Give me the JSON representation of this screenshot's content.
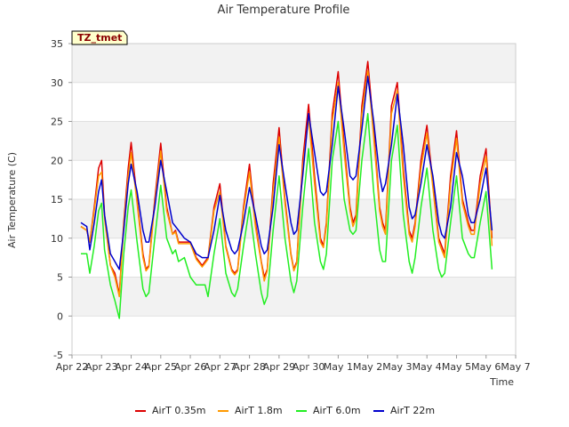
{
  "chart_data": {
    "type": "line",
    "title": "Air Temperature Profile",
    "xlabel": "Time",
    "ylabel": "Air Temperature (C)",
    "badge": "TZ_tmet",
    "ylim": [
      -5,
      35
    ],
    "yticks": [
      -5,
      0,
      5,
      10,
      15,
      20,
      25,
      30,
      35
    ],
    "xlim": [
      0,
      15
    ],
    "xtick_labels": [
      "Apr 22",
      "Apr 23",
      "Apr 24",
      "Apr 25",
      "Apr 26",
      "Apr 27",
      "Apr 28",
      "Apr 29",
      "Apr 30",
      "May 1",
      "May 2",
      "May 3",
      "May 4",
      "May 5",
      "May 6",
      "May 7"
    ],
    "grid": true,
    "legend_position": "bottom",
    "x_unit_note": "x values are days since Apr 22 00:00",
    "series": [
      {
        "name": "AirT 0.35m",
        "color": "#dd0000",
        "x": [
          0.3,
          0.5,
          0.6,
          0.75,
          0.9,
          1.0,
          1.1,
          1.3,
          1.45,
          1.6,
          1.75,
          1.9,
          2.0,
          2.2,
          2.4,
          2.5,
          2.6,
          2.8,
          3.0,
          3.2,
          3.4,
          3.5,
          3.6,
          3.8,
          4.0,
          4.2,
          4.4,
          4.5,
          4.6,
          4.8,
          5.0,
          5.2,
          5.4,
          5.5,
          5.6,
          5.8,
          6.0,
          6.2,
          6.4,
          6.5,
          6.6,
          6.8,
          7.0,
          7.2,
          7.4,
          7.5,
          7.6,
          7.8,
          8.0,
          8.2,
          8.4,
          8.5,
          8.6,
          8.8,
          9.0,
          9.2,
          9.4,
          9.5,
          9.6,
          9.8,
          10.0,
          10.2,
          10.4,
          10.5,
          10.6,
          10.8,
          11.0,
          11.2,
          11.4,
          11.5,
          11.6,
          11.8,
          12.0,
          12.2,
          12.4,
          12.5,
          12.6,
          12.8,
          13.0,
          13.2,
          13.4,
          13.5,
          13.6,
          13.8,
          14.0,
          14.2
        ],
        "y": [
          11.5,
          11.0,
          9.5,
          14.0,
          19.0,
          20.0,
          13.0,
          6.5,
          5.5,
          2.8,
          12.0,
          19.0,
          22.3,
          15.0,
          8.0,
          6.0,
          6.5,
          15.0,
          22.2,
          14.0,
          10.5,
          11.0,
          9.5,
          9.5,
          9.5,
          7.5,
          6.5,
          7.0,
          7.5,
          14.0,
          17.0,
          9.0,
          6.0,
          5.5,
          6.0,
          14.0,
          19.5,
          12.0,
          7.0,
          5.0,
          6.0,
          17.0,
          24.2,
          15.0,
          8.0,
          6.0,
          7.0,
          20.0,
          27.2,
          18.0,
          10.0,
          9.0,
          12.0,
          26.0,
          31.4,
          22.0,
          14.0,
          12.0,
          13.0,
          27.0,
          32.7,
          24.0,
          14.0,
          12.0,
          11.0,
          27.0,
          30.0,
          19.0,
          11.0,
          10.0,
          12.0,
          20.0,
          24.5,
          17.0,
          10.0,
          9.0,
          8.0,
          18.0,
          23.8,
          15.0,
          12.0,
          11.0,
          11.0,
          18.0,
          21.5,
          10.0
        ]
      },
      {
        "name": "AirT 1.8m",
        "color": "#ff9900",
        "x": [
          0.3,
          0.5,
          0.6,
          0.75,
          0.9,
          1.0,
          1.1,
          1.3,
          1.45,
          1.6,
          1.75,
          1.9,
          2.0,
          2.2,
          2.4,
          2.5,
          2.6,
          2.8,
          3.0,
          3.2,
          3.4,
          3.5,
          3.6,
          3.8,
          4.0,
          4.2,
          4.4,
          4.5,
          4.6,
          4.8,
          5.0,
          5.2,
          5.4,
          5.5,
          5.6,
          5.8,
          6.0,
          6.2,
          6.4,
          6.5,
          6.6,
          6.8,
          7.0,
          7.2,
          7.4,
          7.5,
          7.6,
          7.8,
          8.0,
          8.2,
          8.4,
          8.5,
          8.6,
          8.8,
          9.0,
          9.2,
          9.4,
          9.5,
          9.6,
          9.8,
          10.0,
          10.2,
          10.4,
          10.5,
          10.6,
          10.8,
          11.0,
          11.2,
          11.4,
          11.5,
          11.6,
          11.8,
          12.0,
          12.2,
          12.4,
          12.5,
          12.6,
          12.8,
          13.0,
          13.2,
          13.4,
          13.5,
          13.6,
          13.8,
          14.0,
          14.2
        ],
        "y": [
          11.5,
          11.0,
          9.5,
          13.5,
          18.0,
          18.5,
          12.5,
          6.5,
          5.0,
          2.5,
          11.5,
          18.0,
          21.0,
          14.5,
          7.5,
          5.8,
          6.3,
          14.5,
          21.2,
          13.5,
          10.5,
          10.8,
          9.3,
          9.3,
          9.3,
          7.3,
          6.3,
          6.8,
          7.3,
          13.5,
          16.0,
          8.8,
          5.8,
          5.3,
          5.8,
          13.5,
          18.5,
          11.5,
          6.8,
          4.5,
          5.8,
          16.0,
          23.0,
          14.5,
          7.8,
          5.8,
          6.8,
          19.0,
          25.5,
          17.0,
          9.5,
          8.8,
          11.5,
          25.0,
          30.0,
          21.0,
          13.5,
          11.5,
          12.5,
          26.0,
          31.5,
          23.0,
          13.5,
          11.5,
          10.5,
          26.0,
          29.0,
          18.0,
          10.5,
          9.5,
          11.5,
          19.0,
          23.5,
          16.5,
          9.5,
          8.5,
          7.5,
          17.0,
          22.8,
          14.5,
          11.5,
          10.5,
          10.5,
          17.0,
          20.5,
          9.0
        ]
      },
      {
        "name": "AirT 6.0m",
        "color": "#22ee22",
        "x": [
          0.3,
          0.5,
          0.6,
          0.75,
          0.9,
          1.0,
          1.1,
          1.3,
          1.45,
          1.6,
          1.75,
          1.9,
          2.0,
          2.2,
          2.4,
          2.5,
          2.6,
          2.8,
          3.0,
          3.2,
          3.4,
          3.5,
          3.6,
          3.8,
          4.0,
          4.2,
          4.4,
          4.5,
          4.6,
          4.8,
          5.0,
          5.2,
          5.4,
          5.5,
          5.6,
          5.8,
          6.0,
          6.2,
          6.4,
          6.5,
          6.6,
          6.8,
          7.0,
          7.2,
          7.4,
          7.5,
          7.6,
          7.8,
          8.0,
          8.2,
          8.4,
          8.5,
          8.6,
          8.8,
          9.0,
          9.2,
          9.4,
          9.5,
          9.6,
          9.8,
          10.0,
          10.2,
          10.4,
          10.5,
          10.6,
          10.8,
          11.0,
          11.2,
          11.4,
          11.5,
          11.6,
          11.8,
          12.0,
          12.2,
          12.4,
          12.5,
          12.6,
          12.8,
          13.0,
          13.2,
          13.4,
          13.5,
          13.6,
          13.8,
          14.0,
          14.2
        ],
        "y": [
          8.0,
          8.0,
          5.5,
          9.0,
          13.5,
          14.5,
          8.5,
          4.0,
          2.0,
          -0.3,
          8.0,
          14.0,
          16.2,
          9.5,
          3.5,
          2.5,
          3.0,
          10.0,
          16.8,
          10.0,
          8.0,
          8.5,
          7.0,
          7.5,
          5.0,
          4.0,
          4.0,
          4.0,
          2.5,
          8.0,
          12.5,
          5.5,
          3.0,
          2.5,
          3.5,
          9.0,
          14.0,
          8.0,
          3.0,
          1.5,
          2.5,
          11.0,
          18.0,
          10.0,
          4.5,
          3.0,
          4.5,
          14.0,
          21.5,
          12.0,
          7.0,
          6.0,
          8.0,
          20.0,
          25.0,
          15.0,
          11.0,
          10.5,
          11.0,
          20.0,
          26.0,
          16.0,
          8.5,
          7.0,
          7.0,
          20.0,
          24.5,
          13.0,
          7.0,
          5.5,
          7.5,
          14.0,
          19.0,
          11.0,
          6.0,
          5.0,
          5.5,
          12.0,
          18.0,
          10.0,
          8.0,
          7.5,
          7.5,
          12.0,
          16.0,
          6.0
        ]
      },
      {
        "name": "AirT 22m",
        "color": "#0000cc",
        "x": [
          0.3,
          0.5,
          0.6,
          0.75,
          0.9,
          1.0,
          1.1,
          1.3,
          1.45,
          1.6,
          1.75,
          1.9,
          2.0,
          2.2,
          2.4,
          2.5,
          2.6,
          2.8,
          3.0,
          3.2,
          3.4,
          3.5,
          3.6,
          3.8,
          4.0,
          4.2,
          4.4,
          4.5,
          4.6,
          4.8,
          5.0,
          5.2,
          5.4,
          5.5,
          5.6,
          5.8,
          6.0,
          6.2,
          6.4,
          6.5,
          6.6,
          6.8,
          7.0,
          7.2,
          7.4,
          7.5,
          7.6,
          7.8,
          8.0,
          8.2,
          8.4,
          8.5,
          8.6,
          8.8,
          9.0,
          9.2,
          9.4,
          9.5,
          9.6,
          9.8,
          10.0,
          10.2,
          10.4,
          10.5,
          10.6,
          10.8,
          11.0,
          11.2,
          11.4,
          11.5,
          11.6,
          11.8,
          12.0,
          12.2,
          12.4,
          12.5,
          12.6,
          12.8,
          13.0,
          13.2,
          13.4,
          13.5,
          13.6,
          13.8,
          14.0,
          14.2
        ],
        "y": [
          12.0,
          11.5,
          8.5,
          12.0,
          16.0,
          17.5,
          13.0,
          8.0,
          7.0,
          6.0,
          11.0,
          17.0,
          19.5,
          16.0,
          11.0,
          9.5,
          9.5,
          14.0,
          20.0,
          16.0,
          12.0,
          11.5,
          11.0,
          10.0,
          9.5,
          8.0,
          7.5,
          7.5,
          7.5,
          11.0,
          15.5,
          11.0,
          8.5,
          8.0,
          8.5,
          12.0,
          16.5,
          13.0,
          9.0,
          8.0,
          8.5,
          14.0,
          22.0,
          17.0,
          12.0,
          10.5,
          11.0,
          18.0,
          26.0,
          21.0,
          16.0,
          15.5,
          16.0,
          22.0,
          29.5,
          24.0,
          18.0,
          17.5,
          18.0,
          24.0,
          30.8,
          25.0,
          18.0,
          16.0,
          17.0,
          22.0,
          28.5,
          22.0,
          14.0,
          12.5,
          13.0,
          17.0,
          22.0,
          18.0,
          12.0,
          10.5,
          10.0,
          14.0,
          21.0,
          18.0,
          13.0,
          12.0,
          12.0,
          15.0,
          19.0,
          11.0
        ]
      }
    ]
  }
}
